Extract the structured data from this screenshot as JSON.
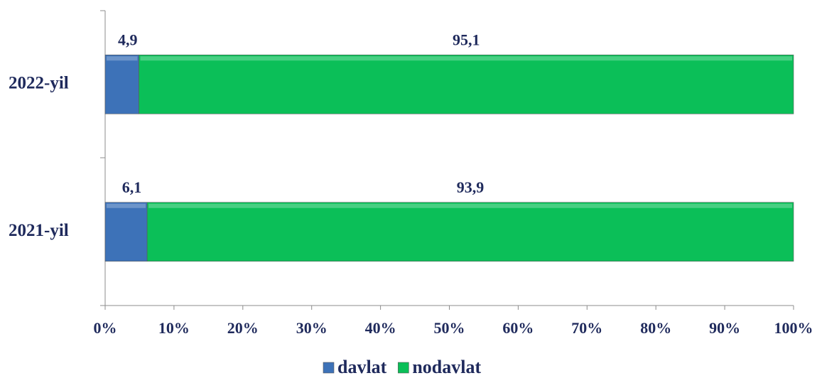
{
  "chart_data": {
    "type": "stacked_bar_horizontal",
    "categories": [
      "2021-yil",
      "2022-yil"
    ],
    "series": [
      {
        "name": "davlat",
        "color": "#3d72b8",
        "values": [
          6.1,
          4.9
        ],
        "value_labels": [
          "6,1",
          "4,9"
        ]
      },
      {
        "name": "nodavlat",
        "color": "#0bbf58",
        "values": [
          93.9,
          95.1
        ],
        "value_labels": [
          "93,9",
          "95,1"
        ]
      }
    ],
    "xlim": [
      0,
      100
    ],
    "xticks": [
      {
        "value": 0,
        "label": "0%"
      },
      {
        "value": 10,
        "label": "10%"
      },
      {
        "value": 20,
        "label": "20%"
      },
      {
        "value": 30,
        "label": "30%"
      },
      {
        "value": 40,
        "label": "40%"
      },
      {
        "value": 50,
        "label": "50%"
      },
      {
        "value": 60,
        "label": "60%"
      },
      {
        "value": 70,
        "label": "70%"
      },
      {
        "value": 80,
        "label": "80%"
      },
      {
        "value": 90,
        "label": "90%"
      },
      {
        "value": 100,
        "label": "100%"
      }
    ],
    "legend": "bottom"
  }
}
